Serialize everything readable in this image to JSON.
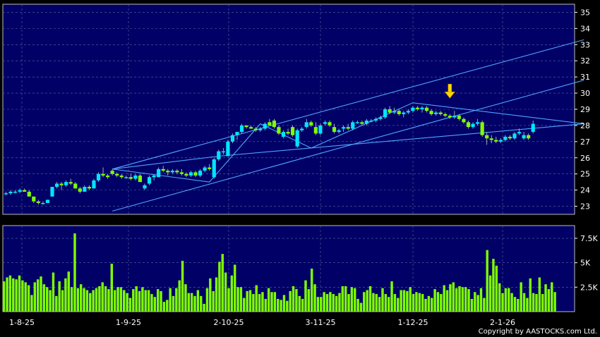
{
  "chart_data": [
    {
      "type": "candlestick",
      "title": "",
      "ylim": [
        22.5,
        35.5
      ],
      "yticks": [
        23,
        24,
        25,
        26,
        27,
        28,
        29,
        30,
        31,
        32,
        33,
        34,
        35
      ],
      "x_labels": [
        "1-8-25",
        "1-9-25",
        "2-10-25",
        "3-11-25",
        "1-12-25",
        "2-1-26"
      ],
      "series_colors": {
        "up": "#00e5ff",
        "down": "#7fff00",
        "trendline": "#4fa3ff"
      },
      "candles": [
        [
          23.8,
          23.9,
          23.7,
          23.8
        ],
        [
          23.8,
          24.0,
          23.7,
          23.9
        ],
        [
          23.9,
          24.0,
          23.8,
          23.9
        ],
        [
          23.9,
          24.1,
          23.8,
          24.0
        ],
        [
          24.0,
          24.1,
          23.9,
          23.9
        ],
        [
          23.9,
          24.0,
          23.7,
          23.6
        ],
        [
          23.6,
          23.6,
          23.2,
          23.3
        ],
        [
          23.3,
          23.4,
          23.1,
          23.2
        ],
        [
          23.2,
          23.3,
          23.1,
          23.2
        ],
        [
          23.2,
          23.4,
          23.2,
          23.4
        ],
        [
          23.6,
          24.2,
          23.6,
          24.2
        ],
        [
          24.2,
          24.5,
          24.1,
          24.4
        ],
        [
          24.4,
          24.5,
          24.0,
          24.3
        ],
        [
          24.3,
          24.6,
          24.2,
          24.5
        ],
        [
          24.5,
          24.7,
          24.3,
          24.4
        ],
        [
          24.4,
          24.5,
          24.1,
          24.1
        ],
        [
          24.1,
          24.2,
          23.8,
          23.9
        ],
        [
          23.9,
          24.3,
          23.9,
          24.2
        ],
        [
          24.2,
          24.3,
          24.0,
          24.1
        ],
        [
          24.1,
          24.7,
          24.1,
          24.6
        ],
        [
          24.6,
          25.1,
          24.5,
          25.0
        ],
        [
          25.0,
          25.4,
          24.8,
          24.9
        ],
        [
          24.9,
          25.0,
          24.7,
          24.8
        ],
        [
          25.2,
          25.3,
          24.9,
          25.0
        ],
        [
          25.0,
          25.1,
          24.8,
          24.9
        ],
        [
          24.9,
          25.0,
          24.7,
          24.8
        ],
        [
          24.8,
          24.9,
          24.7,
          24.8
        ],
        [
          24.8,
          25.0,
          24.6,
          24.7
        ],
        [
          24.7,
          25.0,
          24.6,
          24.9
        ],
        [
          24.9,
          25.0,
          24.5,
          24.5
        ],
        [
          24.1,
          24.4,
          24.0,
          24.3
        ],
        [
          24.4,
          24.9,
          24.3,
          24.8
        ],
        [
          24.8,
          25.0,
          24.6,
          24.9
        ],
        [
          24.8,
          25.4,
          24.8,
          25.3
        ],
        [
          25.3,
          25.5,
          25.1,
          25.2
        ],
        [
          25.2,
          25.3,
          24.9,
          25.1
        ],
        [
          25.1,
          25.3,
          25.0,
          25.2
        ],
        [
          25.2,
          25.3,
          25.0,
          25.1
        ],
        [
          25.1,
          25.3,
          24.9,
          25.0
        ],
        [
          25.0,
          25.1,
          24.8,
          24.9
        ],
        [
          24.9,
          25.2,
          24.8,
          25.1
        ],
        [
          25.1,
          25.2,
          24.8,
          24.9
        ],
        [
          24.9,
          25.3,
          24.8,
          25.2
        ],
        [
          25.2,
          25.5,
          25.1,
          25.4
        ],
        [
          25.4,
          25.6,
          25.2,
          25.3
        ],
        [
          24.8,
          26.0,
          24.7,
          25.9
        ],
        [
          25.9,
          26.5,
          25.8,
          26.4
        ],
        [
          26.4,
          26.6,
          26.2,
          26.4
        ],
        [
          26.1,
          27.1,
          26.1,
          27.0
        ],
        [
          27.0,
          27.5,
          26.9,
          27.4
        ],
        [
          27.4,
          27.6,
          27.1,
          27.6
        ],
        [
          27.6,
          28.1,
          27.5,
          28.0
        ],
        [
          28.0,
          28.0,
          27.8,
          27.9
        ],
        [
          27.9,
          28.0,
          27.8,
          27.8
        ],
        [
          27.8,
          27.9,
          27.6,
          27.7
        ],
        [
          27.7,
          27.9,
          27.6,
          27.8
        ],
        [
          27.8,
          28.2,
          27.7,
          28.1
        ],
        [
          28.2,
          28.4,
          28.0,
          28.0
        ],
        [
          28.3,
          28.4,
          27.8,
          27.9
        ],
        [
          27.9,
          28.0,
          27.4,
          27.5
        ],
        [
          27.3,
          27.7,
          27.2,
          27.6
        ],
        [
          27.6,
          27.8,
          27.4,
          27.5
        ],
        [
          27.9,
          28.0,
          27.3,
          27.4
        ],
        [
          26.7,
          27.8,
          26.6,
          27.7
        ],
        [
          27.7,
          27.9,
          27.6,
          27.8
        ],
        [
          27.9,
          28.4,
          27.8,
          28.2
        ],
        [
          28.2,
          28.3,
          27.9,
          28.0
        ],
        [
          27.9,
          28.2,
          27.4,
          27.5
        ],
        [
          27.5,
          28.1,
          27.4,
          28.0
        ],
        [
          28.1,
          28.3,
          28.0,
          28.2
        ],
        [
          28.2,
          28.3,
          27.9,
          28.0
        ],
        [
          27.9,
          28.1,
          27.5,
          27.6
        ],
        [
          27.6,
          27.8,
          27.5,
          27.7
        ],
        [
          27.8,
          28.0,
          27.6,
          27.9
        ],
        [
          27.9,
          28.1,
          27.7,
          27.8
        ],
        [
          27.8,
          28.3,
          27.7,
          28.2
        ],
        [
          28.2,
          28.3,
          28.1,
          28.2
        ],
        [
          28.2,
          28.3,
          28.0,
          28.1
        ],
        [
          28.1,
          28.4,
          28.0,
          28.3
        ],
        [
          28.3,
          28.4,
          28.2,
          28.3
        ],
        [
          28.3,
          28.5,
          28.2,
          28.4
        ],
        [
          28.4,
          28.6,
          28.3,
          28.5
        ],
        [
          28.5,
          29.1,
          28.4,
          29.0
        ],
        [
          29.0,
          29.2,
          28.7,
          28.8
        ],
        [
          28.8,
          29.1,
          28.7,
          28.9
        ],
        [
          28.9,
          29.0,
          28.6,
          28.7
        ],
        [
          28.7,
          28.9,
          28.5,
          28.8
        ],
        [
          28.8,
          29.0,
          28.7,
          28.9
        ],
        [
          28.9,
          29.2,
          28.8,
          29.1
        ],
        [
          29.1,
          29.2,
          28.9,
          29.0
        ],
        [
          29.0,
          29.2,
          28.8,
          29.1
        ],
        [
          29.1,
          29.2,
          28.8,
          28.9
        ],
        [
          28.9,
          29.0,
          28.6,
          28.7
        ],
        [
          28.7,
          28.9,
          28.6,
          28.8
        ],
        [
          28.8,
          28.9,
          28.6,
          28.7
        ],
        [
          28.7,
          28.8,
          28.5,
          28.6
        ],
        [
          28.6,
          28.7,
          28.4,
          28.5
        ],
        [
          28.5,
          28.9,
          28.4,
          28.6
        ],
        [
          28.6,
          28.7,
          28.3,
          28.4
        ],
        [
          28.4,
          28.5,
          28.1,
          28.2
        ],
        [
          28.2,
          28.3,
          27.8,
          27.9
        ],
        [
          27.9,
          28.2,
          27.8,
          28.1
        ],
        [
          28.1,
          28.4,
          28.0,
          28.2
        ],
        [
          28.2,
          28.3,
          27.3,
          27.4
        ],
        [
          27.4,
          27.6,
          26.8,
          27.2
        ],
        [
          27.2,
          27.4,
          26.9,
          27.1
        ],
        [
          27.1,
          27.3,
          26.9,
          27.0
        ],
        [
          27.0,
          27.2,
          26.9,
          27.1
        ],
        [
          27.1,
          27.4,
          27.0,
          27.3
        ],
        [
          27.3,
          27.4,
          27.1,
          27.2
        ],
        [
          27.2,
          27.6,
          27.1,
          27.5
        ],
        [
          27.5,
          27.8,
          27.4,
          27.6
        ],
        [
          27.2,
          27.6,
          27.1,
          27.4
        ],
        [
          27.4,
          27.5,
          27.1,
          27.2
        ],
        [
          27.6,
          28.3,
          27.5,
          28.1
        ]
      ],
      "trendlines": [
        [
          [
            23,
            25.3
          ],
          [
            46,
            26.1
          ],
          [
            125,
            28.1
          ]
        ],
        [
          [
            23,
            25.3
          ],
          [
            44,
            24.5
          ],
          [
            55,
            28.1
          ],
          [
            66,
            26.6
          ],
          [
            88,
            29.4
          ],
          [
            125,
            28.1
          ]
        ],
        [
          [
            23,
            22.7
          ],
          [
            125,
            30.8
          ]
        ],
        [
          [
            23,
            25.3
          ],
          [
            125,
            33.3
          ]
        ]
      ],
      "marker": {
        "type": "arrow-down",
        "candle_index": 96,
        "price": 29.6,
        "color": "#ffd700"
      }
    },
    {
      "type": "bar",
      "title": "",
      "ylim": [
        0,
        8800
      ],
      "yticks": [
        2500,
        5000,
        7500
      ],
      "ytick_labels": [
        "2.5K",
        "5K",
        "7.5K"
      ],
      "bar_color": "#7fff00",
      "values": [
        3100,
        3500,
        3700,
        3400,
        3300,
        3700,
        3200,
        3000,
        2700,
        1700,
        3000,
        3300,
        3600,
        2800,
        2500,
        2200,
        4000,
        1600,
        3100,
        2200,
        3400,
        4100,
        2500,
        8000,
        2400,
        2800,
        2400,
        2200,
        1900,
        2200,
        2400,
        2600,
        3000,
        2600,
        2300,
        4900,
        2200,
        2500,
        2500,
        2200,
        1900,
        1400,
        2300,
        2600,
        2100,
        2500,
        2200,
        2200,
        1800,
        1500,
        2300,
        2100,
        1000,
        1200,
        2400,
        1600,
        2400,
        3200,
        5200,
        2800,
        1900,
        1900,
        1600,
        2200,
        1600,
        800,
        2400,
        3400,
        2100,
        3500,
        5100,
        5900,
        4000,
        2400,
        3700,
        4800,
        2500,
        2500,
        1400,
        2100,
        2200,
        1800,
        2700,
        1800,
        2000,
        1300,
        2400,
        2000,
        2000,
        1300,
        1200,
        1700,
        1100,
        2100,
        2600,
        2300,
        1600,
        1300,
        3200,
        2300,
        4400,
        2800,
        1500,
        1500,
        2000,
        1800,
        2000,
        1800,
        1600,
        1900,
        2600,
        2600,
        1800,
        2500,
        2400,
        1300,
        900,
        2000,
        2200,
        2600,
        1900,
        1800,
        1500,
        2400,
        1800,
        1500,
        3100,
        1800,
        1400,
        2200,
        2200,
        2100,
        2500,
        1800,
        2000,
        1900,
        1800,
        1300,
        1600,
        1400,
        2300,
        2000,
        1800,
        2700,
        2200,
        2800,
        3000,
        2400,
        2600,
        2500,
        2500,
        2300,
        1300,
        2000,
        1700,
        2400,
        1400,
        6300,
        3700,
        5400,
        4700,
        2900,
        1900,
        2400,
        2400,
        1900,
        1500,
        1300,
        3000,
        1900,
        1400,
        3400,
        1900,
        1800,
        3500,
        1800,
        2800,
        2300,
        3000,
        2000
      ]
    }
  ],
  "copyright": "Copyright by AASTOCKS.com Ltd."
}
